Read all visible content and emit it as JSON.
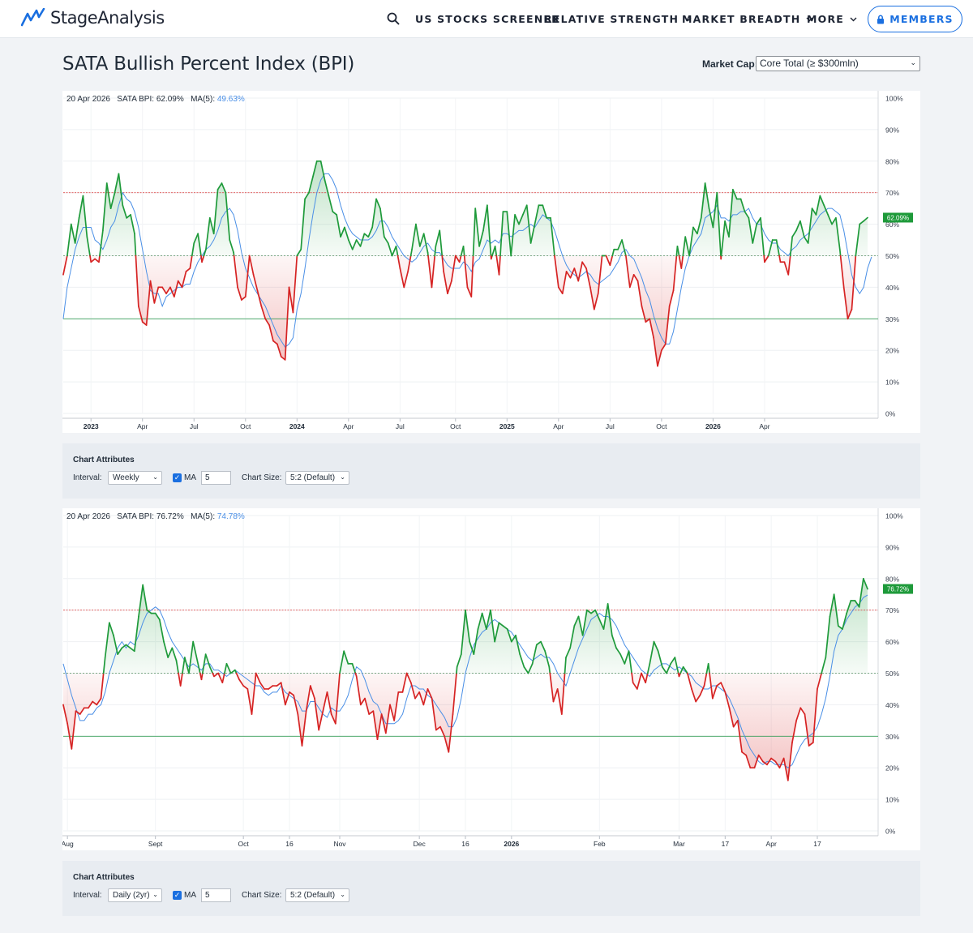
{
  "nav": {
    "brand": "StageAnalysis",
    "menu": [
      {
        "label": "US STOCKS SCREENER",
        "dropdown": false
      },
      {
        "label": "RELATIVE STRENGTH",
        "dropdown": true
      },
      {
        "label": "MARKET BREADTH",
        "dropdown": true
      },
      {
        "label": "MORE",
        "dropdown": true
      }
    ],
    "members_label": "MEMBERS",
    "search_icon": "search-icon",
    "lock_icon": "lock-icon"
  },
  "page": {
    "title": "SATA Bullish Percent Index (BPI)",
    "market_cap_label": "Market Cap:",
    "market_cap_value": "Core Total (≥ $300mln)"
  },
  "colors": {
    "accent": "#1a6fe0",
    "bull": "#1e9a3a",
    "bear": "#d62323",
    "ma": "#4a8fe6",
    "overbought": "#e05050",
    "oversold": "#3aa05a"
  },
  "charts": [
    {
      "legend": {
        "date": "20 Apr 2026",
        "bpi_label": "SATA BPI:",
        "bpi_value": "62.09%",
        "ma_label": "MA(5):",
        "ma_value": "49.63%"
      },
      "attributes": {
        "title": "Chart Attributes",
        "interval_label": "Interval:",
        "interval_value": "Weekly",
        "ma_label": "MA",
        "ma_value": "5",
        "size_label": "Chart Size:",
        "size_value": "5:2 (Default)"
      }
    },
    {
      "legend": {
        "date": "20 Apr 2026",
        "bpi_label": "SATA BPI:",
        "bpi_value": "76.72%",
        "ma_label": "MA(5):",
        "ma_value": "74.78%"
      },
      "attributes": {
        "title": "Chart Attributes",
        "interval_label": "Interval:",
        "interval_value": "Daily (2yr)",
        "ma_label": "MA",
        "ma_value": "5",
        "size_label": "Chart Size:",
        "size_value": "5:2 (Default)"
      }
    }
  ],
  "chart_data": [
    {
      "type": "line",
      "title": "",
      "ylim": [
        0,
        100
      ],
      "y_ticks": [
        "0%",
        "10%",
        "20%",
        "30%",
        "40%",
        "50%",
        "60%",
        "70%",
        "80%",
        "90%",
        "100%"
      ],
      "reference_lines": [
        70,
        50,
        30
      ],
      "x_ticks": [
        {
          "label": "2023",
          "i": 7,
          "bold": true
        },
        {
          "label": "Apr",
          "i": 20,
          "bold": false
        },
        {
          "label": "Jul",
          "i": 33,
          "bold": false
        },
        {
          "label": "Oct",
          "i": 46,
          "bold": false
        },
        {
          "label": "2024",
          "i": 59,
          "bold": true
        },
        {
          "label": "Apr",
          "i": 72,
          "bold": false
        },
        {
          "label": "Jul",
          "i": 85,
          "bold": false
        },
        {
          "label": "Oct",
          "i": 99,
          "bold": false
        },
        {
          "label": "2025",
          "i": 112,
          "bold": true
        },
        {
          "label": "Apr",
          "i": 125,
          "bold": false
        },
        {
          "label": "Jul",
          "i": 138,
          "bold": false
        },
        {
          "label": "Oct",
          "i": 151,
          "bold": false
        },
        {
          "label": "2026",
          "i": 164,
          "bold": true
        },
        {
          "label": "Apr",
          "i": 177,
          "bold": false
        }
      ],
      "series": [
        {
          "name": "SATA BPI",
          "last_label": "62.09%",
          "values": [
            44,
            50,
            60,
            54,
            62,
            69,
            56,
            48,
            49,
            48,
            58,
            73,
            65,
            70,
            76,
            66,
            62,
            63,
            57,
            34,
            29,
            28,
            42,
            35,
            40,
            40,
            38,
            40,
            37,
            42,
            40,
            45,
            46,
            54,
            57,
            48,
            52,
            62,
            57,
            71,
            73,
            70,
            55,
            51,
            40,
            36,
            37,
            50,
            44,
            39,
            34,
            30,
            28,
            23,
            22,
            18,
            17,
            40,
            32,
            50,
            52,
            68,
            70,
            75,
            80,
            80,
            74,
            69,
            64,
            63,
            56,
            59,
            55,
            52,
            55,
            53,
            57,
            56,
            59,
            68,
            65,
            56,
            54,
            50,
            53,
            46,
            40,
            45,
            52,
            60,
            53,
            57,
            51,
            40,
            53,
            58,
            45,
            38,
            42,
            50,
            48,
            53,
            40,
            37,
            65,
            53,
            58,
            66,
            49,
            53,
            44,
            64,
            64,
            50,
            63,
            60,
            63,
            66,
            54,
            60,
            66,
            66,
            62,
            62,
            50,
            40,
            38,
            45,
            43,
            46,
            42,
            48,
            46,
            40,
            33,
            38,
            50,
            50,
            47,
            52,
            52,
            55,
            50,
            40,
            44,
            42,
            34,
            29,
            30,
            24,
            15,
            20,
            22,
            34,
            39,
            53,
            46,
            56,
            50,
            59,
            57,
            62,
            73,
            65,
            59,
            70,
            49,
            61,
            56,
            71,
            68,
            68,
            64,
            62,
            54,
            60,
            62,
            48,
            50,
            55,
            55,
            48,
            48,
            44,
            56,
            58,
            61,
            56,
            54,
            65,
            63,
            69,
            66,
            63,
            60,
            62,
            52,
            40,
            30,
            33,
            50,
            60,
            61,
            62.09
          ]
        },
        {
          "name": "MA(5)",
          "last_label": "49.63%",
          "values": [
            30,
            40,
            46,
            52,
            56,
            59,
            59,
            59,
            55,
            54,
            52,
            55,
            59,
            61,
            66,
            70,
            68,
            67,
            64,
            59,
            52,
            45,
            39,
            38,
            38,
            34,
            37,
            38,
            39,
            40,
            40,
            41,
            41,
            45,
            48,
            50,
            52,
            53,
            55,
            58,
            62,
            64,
            65,
            63,
            58,
            51,
            46,
            43,
            40,
            38,
            36,
            34,
            31,
            28,
            25,
            23,
            21,
            22,
            24,
            33,
            38,
            46,
            55,
            63,
            70,
            74,
            76,
            76,
            74,
            71,
            66,
            62,
            59,
            57,
            56,
            55,
            55,
            55,
            56,
            58,
            61,
            61,
            59,
            56,
            54,
            52,
            50,
            49,
            48,
            49,
            51,
            53,
            54,
            52,
            51,
            51,
            49,
            47,
            46,
            46,
            46,
            48,
            47,
            45,
            48,
            49,
            52,
            55,
            54,
            55,
            54,
            57,
            57,
            56,
            57,
            58,
            58,
            59,
            60,
            59,
            61,
            63,
            62,
            61,
            58,
            54,
            50,
            47,
            45,
            44,
            43,
            44,
            45,
            44,
            42,
            41,
            42,
            43,
            44,
            46,
            48,
            51,
            52,
            50,
            49,
            46,
            43,
            39,
            36,
            31,
            27,
            24,
            22,
            22,
            26,
            33,
            40,
            46,
            50,
            53,
            55,
            57,
            62,
            63,
            64,
            66,
            62,
            62,
            61,
            63,
            63,
            64,
            64,
            65,
            62,
            60,
            60,
            57,
            55,
            54,
            54,
            52,
            51,
            50,
            52,
            53,
            55,
            56,
            57,
            59,
            61,
            63,
            64,
            65,
            65,
            64,
            63,
            58,
            51,
            44,
            40,
            38,
            40,
            46,
            49.63
          ]
        }
      ]
    },
    {
      "type": "line",
      "title": "",
      "ylim": [
        0,
        100
      ],
      "y_ticks": [
        "0%",
        "10%",
        "20%",
        "30%",
        "40%",
        "50%",
        "60%",
        "70%",
        "80%",
        "90%",
        "100%"
      ],
      "reference_lines": [
        70,
        50,
        30
      ],
      "x_ticks": [
        {
          "label": "Aug",
          "i": 1,
          "bold": false
        },
        {
          "label": "Sept",
          "i": 22,
          "bold": false
        },
        {
          "label": "Oct",
          "i": 43,
          "bold": false
        },
        {
          "label": "16",
          "i": 54,
          "bold": false
        },
        {
          "label": "Nov",
          "i": 66,
          "bold": false
        },
        {
          "label": "Dec",
          "i": 85,
          "bold": false
        },
        {
          "label": "16",
          "i": 96,
          "bold": false
        },
        {
          "label": "2026",
          "i": 107,
          "bold": true
        },
        {
          "label": "Feb",
          "i": 128,
          "bold": false
        },
        {
          "label": "Mar",
          "i": 147,
          "bold": false
        },
        {
          "label": "17",
          "i": 158,
          "bold": false
        },
        {
          "label": "Apr",
          "i": 169,
          "bold": false
        },
        {
          "label": "17",
          "i": 180,
          "bold": false
        }
      ],
      "series": [
        {
          "name": "SATA BPI",
          "last_label": "76.72%",
          "values": [
            40,
            34,
            26,
            38,
            37,
            39,
            39,
            41,
            40,
            42,
            55,
            66,
            62,
            56,
            58,
            59,
            58,
            57,
            68,
            78,
            70,
            69,
            69,
            67,
            60,
            55,
            58,
            54,
            46,
            55,
            50,
            60,
            54,
            48,
            56,
            52,
            49,
            50,
            47,
            53,
            50,
            51,
            48,
            46,
            45,
            37,
            50,
            47,
            45,
            45,
            46,
            46,
            47,
            40,
            44,
            43,
            37,
            27,
            38,
            46,
            42,
            32,
            38,
            44,
            37,
            34,
            50,
            57,
            53,
            53,
            49,
            40,
            42,
            37,
            38,
            29,
            37,
            31,
            40,
            35,
            44,
            44,
            50,
            47,
            42,
            44,
            40,
            45,
            42,
            32,
            33,
            30,
            25,
            37,
            52,
            56,
            70,
            60,
            56,
            64,
            69,
            64,
            70,
            60,
            66,
            65,
            64,
            60,
            62,
            56,
            52,
            50,
            53,
            59,
            60,
            57,
            52,
            41,
            45,
            37,
            55,
            58,
            65,
            68,
            62,
            70,
            69,
            70,
            67,
            64,
            72,
            62,
            58,
            56,
            53,
            57,
            47,
            45,
            50,
            47,
            53,
            60,
            57,
            52,
            50,
            53,
            55,
            49,
            52,
            50,
            45,
            41,
            43,
            46,
            53,
            42,
            46,
            47,
            44,
            39,
            33,
            35,
            25,
            24,
            20,
            20,
            24,
            22,
            21,
            23,
            22,
            20,
            23,
            16,
            28,
            35,
            39,
            37,
            27,
            28,
            45,
            50,
            55,
            68,
            75,
            65,
            64,
            69,
            73,
            73,
            71,
            80,
            76.72
          ]
        },
        {
          "name": "MA(5)",
          "last_label": "74.78%",
          "values": [
            53,
            48,
            43,
            39,
            35,
            35,
            37,
            37,
            39,
            40,
            44,
            50,
            54,
            58,
            60,
            58,
            60,
            59,
            62,
            66,
            69,
            70,
            71,
            70,
            67,
            63,
            60,
            58,
            56,
            54,
            52,
            53,
            52,
            51,
            53,
            53,
            51,
            51,
            50,
            49,
            50,
            51,
            50,
            49,
            48,
            47,
            46,
            46,
            44,
            43,
            44,
            44,
            46,
            44,
            43,
            42,
            41,
            38,
            38,
            41,
            41,
            39,
            37,
            36,
            39,
            38,
            38,
            40,
            43,
            48,
            52,
            51,
            48,
            44,
            41,
            40,
            37,
            34,
            34,
            34,
            35,
            37,
            42,
            46,
            46,
            45,
            45,
            43,
            42,
            40,
            38,
            36,
            33,
            33,
            36,
            42,
            50,
            55,
            59,
            61,
            63,
            64,
            66,
            67,
            66,
            65,
            64,
            63,
            61,
            59,
            57,
            55,
            54,
            55,
            56,
            55,
            55,
            53,
            50,
            48,
            46,
            50,
            54,
            58,
            61,
            64,
            67,
            68,
            69,
            68,
            68,
            67,
            65,
            62,
            59,
            57,
            55,
            53,
            51,
            50,
            49,
            51,
            52,
            53,
            53,
            52,
            51,
            52,
            51,
            50,
            49,
            47,
            46,
            45,
            45,
            46,
            46,
            45,
            44,
            42,
            39,
            36,
            32,
            29,
            26,
            24,
            22,
            21,
            22,
            22,
            21,
            21,
            21,
            20,
            21,
            24,
            27,
            29,
            30,
            31,
            33,
            37,
            42,
            49,
            57,
            62,
            64,
            67,
            69,
            71,
            72,
            74,
            74.78
          ]
        }
      ]
    }
  ]
}
